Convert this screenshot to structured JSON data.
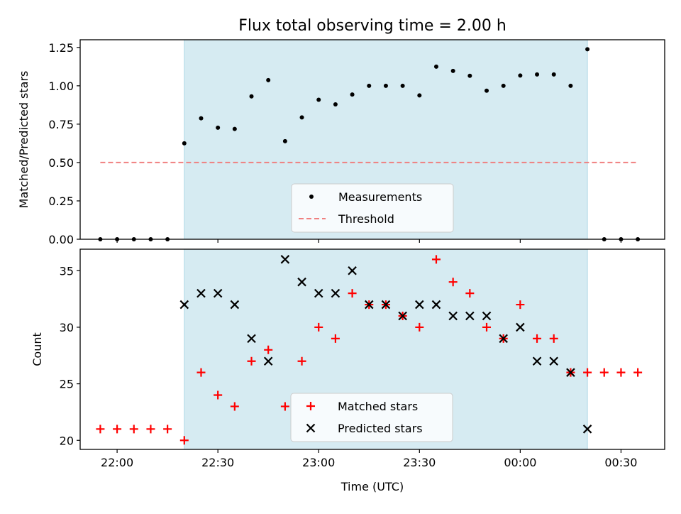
{
  "title": "Flux total observing time = 2.00 h",
  "colors": {
    "shade": "#add8e6",
    "threshold": "#f08080",
    "matched": "#ff0000",
    "predicted": "#000000",
    "measurements": "#000000"
  },
  "chart_data": [
    {
      "type": "scatter",
      "title": "Flux total observing time = 2.00 h",
      "ylabel": "Matched/Predicted stars",
      "xlabel": "",
      "x_ticks": [
        "22:00",
        "22:30",
        "23:00",
        "23:30",
        "00:00",
        "00:30"
      ],
      "y_ticks": [
        "0.00",
        "0.25",
        "0.50",
        "0.75",
        "1.00",
        "1.25"
      ],
      "ylim": [
        0,
        1.3
      ],
      "xlim": [
        "21:49",
        "00:43"
      ],
      "grid": false,
      "legend_position": "lower center",
      "shaded_region": {
        "from": "22:20",
        "to": "00:20"
      },
      "series": [
        {
          "name": "Measurements",
          "marker": "dot",
          "x": [
            "21:55",
            "22:00",
            "22:05",
            "22:10",
            "22:15",
            "22:20",
            "22:25",
            "22:30",
            "22:35",
            "22:40",
            "22:45",
            "22:50",
            "22:55",
            "23:00",
            "23:05",
            "23:10",
            "23:15",
            "23:20",
            "23:25",
            "23:30",
            "23:35",
            "23:40",
            "23:45",
            "23:50",
            "23:55",
            "00:00",
            "00:05",
            "00:10",
            "00:15",
            "00:20",
            "00:25",
            "00:30",
            "00:35"
          ],
          "y": [
            0,
            0,
            0,
            0,
            0,
            0.625,
            0.788,
            0.727,
            0.719,
            0.931,
            1.037,
            0.639,
            0.794,
            0.909,
            0.879,
            0.943,
            1.0,
            1.0,
            1.0,
            0.9375,
            1.125,
            1.097,
            1.065,
            0.968,
            1.0,
            1.067,
            1.074,
            1.074,
            1.0,
            1.238,
            0,
            0,
            0
          ]
        },
        {
          "name": "Threshold",
          "line": "dashed",
          "x": [
            "21:55",
            "00:35"
          ],
          "y": [
            0.5,
            0.5
          ]
        }
      ]
    },
    {
      "type": "scatter",
      "xlabel": "Time (UTC)",
      "ylabel": "Count",
      "x_ticks": [
        "22:00",
        "22:30",
        "23:00",
        "23:30",
        "00:00",
        "00:30"
      ],
      "y_ticks": [
        "20",
        "25",
        "30",
        "35"
      ],
      "ylim": [
        19.2,
        36.9
      ],
      "xlim": [
        "21:49",
        "00:43"
      ],
      "grid": false,
      "legend_position": "lower center",
      "shaded_region": {
        "from": "22:20",
        "to": "00:20"
      },
      "series": [
        {
          "name": "Matched stars",
          "marker": "plus",
          "x": [
            "21:55",
            "22:00",
            "22:05",
            "22:10",
            "22:15",
            "22:20",
            "22:25",
            "22:30",
            "22:35",
            "22:40",
            "22:45",
            "22:50",
            "22:55",
            "23:00",
            "23:05",
            "23:10",
            "23:15",
            "23:20",
            "23:25",
            "23:30",
            "23:35",
            "23:40",
            "23:45",
            "23:50",
            "23:55",
            "00:00",
            "00:05",
            "00:10",
            "00:15",
            "00:20",
            "00:25",
            "00:30",
            "00:35"
          ],
          "y": [
            21,
            21,
            21,
            21,
            21,
            20,
            26,
            24,
            23,
            27,
            28,
            23,
            27,
            30,
            29,
            33,
            32,
            32,
            31,
            30,
            36,
            34,
            33,
            30,
            29,
            32,
            29,
            29,
            26,
            26,
            26,
            26,
            26
          ]
        },
        {
          "name": "Predicted stars",
          "marker": "x",
          "x": [
            "22:20",
            "22:25",
            "22:30",
            "22:35",
            "22:40",
            "22:45",
            "22:50",
            "22:55",
            "23:00",
            "23:05",
            "23:10",
            "23:15",
            "23:20",
            "23:25",
            "23:30",
            "23:35",
            "23:40",
            "23:45",
            "23:50",
            "23:55",
            "00:00",
            "00:05",
            "00:10",
            "00:15",
            "00:20"
          ],
          "y": [
            32,
            33,
            33,
            32,
            29,
            27,
            36,
            34,
            33,
            33,
            35,
            32,
            32,
            31,
            32,
            32,
            31,
            31,
            31,
            29,
            30,
            27,
            27,
            26,
            21
          ]
        }
      ]
    }
  ]
}
